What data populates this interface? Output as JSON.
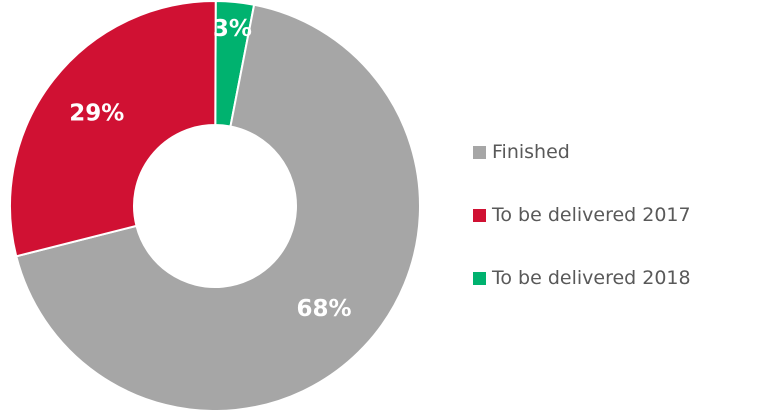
{
  "chart_data": {
    "type": "pie",
    "donut": true,
    "series": [
      {
        "name": "Finished",
        "value": 68,
        "label": "68%",
        "color": "#a6a6a6"
      },
      {
        "name": "To be delivered 2017",
        "value": 29,
        "label": "29%",
        "color": "#d01133"
      },
      {
        "name": "To be delivered 2018",
        "value": 3,
        "label": "3%",
        "color": "#00b26f"
      }
    ],
    "legend": {
      "position": "right",
      "items": [
        "Finished",
        "To be delivered 2017",
        "To be delivered 2018"
      ]
    }
  }
}
